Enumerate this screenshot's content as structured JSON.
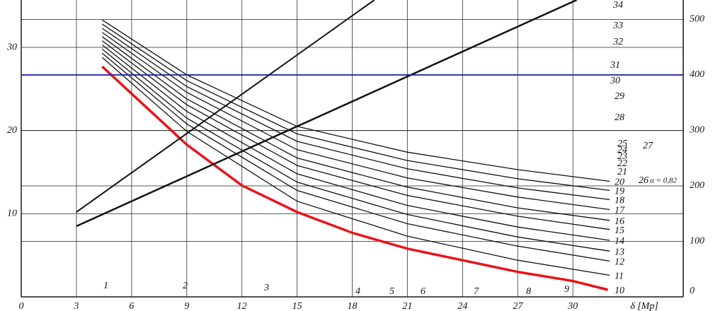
{
  "chart_data": {
    "type": "line",
    "x_label": "δ [Mp]",
    "xlim": [
      0,
      36
    ],
    "xticks": [
      0,
      3,
      6,
      9,
      12,
      15,
      18,
      21,
      24,
      27,
      30
    ],
    "ylim": [
      0,
      35.7
    ],
    "yticks": [
      10,
      20,
      30
    ],
    "y2lim": [
      0,
      535
    ],
    "y2ticks": [
      0,
      100,
      200,
      300,
      400,
      500
    ],
    "grid": true,
    "series": [
      {
        "name": "10",
        "color": "#e8141a",
        "width": 3.5,
        "x": [
          4.4,
          9,
          12,
          15,
          18,
          21,
          24,
          27,
          30,
          31.9
        ],
        "values": [
          27.7,
          18.3,
          13.4,
          10.2,
          7.7,
          5.8,
          4.4,
          3.0,
          1.9,
          0.85
        ]
      },
      {
        "name": "11",
        "color": "#111111",
        "width": 1.3,
        "x": [
          4.4,
          9,
          15,
          21,
          27,
          32
        ],
        "values": [
          28.8,
          19.9,
          11.5,
          7.3,
          4.4,
          2.6
        ]
      },
      {
        "name": "12",
        "color": "#111111",
        "width": 1.3,
        "x": [
          4.4,
          9,
          15,
          21,
          27,
          32
        ],
        "values": [
          29.3,
          20.8,
          12.8,
          8.8,
          6.1,
          4.3
        ]
      },
      {
        "name": "13",
        "color": "#111111",
        "width": 1.3,
        "x": [
          4.4,
          9,
          15,
          21,
          27,
          32
        ],
        "values": [
          29.8,
          21.5,
          13.8,
          9.9,
          7.2,
          5.5
        ]
      },
      {
        "name": "14",
        "color": "#111111",
        "width": 1.3,
        "x": [
          4.4,
          9,
          15,
          21,
          27,
          32
        ],
        "values": [
          30.3,
          22.3,
          14.8,
          11.0,
          8.4,
          6.8
        ]
      },
      {
        "name": "15",
        "color": "#111111",
        "width": 1.3,
        "x": [
          4.4,
          9,
          15,
          21,
          27,
          32
        ],
        "values": [
          30.8,
          23.1,
          15.8,
          12.2,
          9.7,
          8.1
        ]
      },
      {
        "name": "16",
        "color": "#111111",
        "width": 1.3,
        "x": [
          4.4,
          9,
          15,
          21,
          27,
          32
        ],
        "values": [
          31.3,
          23.8,
          16.7,
          13.2,
          10.7,
          9.2
        ]
      },
      {
        "name": "17",
        "color": "#111111",
        "width": 1.3,
        "x": [
          4.4,
          9,
          15,
          21,
          27,
          32
        ],
        "values": [
          31.8,
          24.6,
          17.7,
          14.3,
          12.0,
          10.5
        ]
      },
      {
        "name": "18",
        "color": "#111111",
        "width": 1.3,
        "x": [
          4.4,
          9,
          15,
          21,
          27,
          32
        ],
        "values": [
          32.3,
          25.3,
          18.7,
          15.4,
          13.1,
          11.7
        ]
      },
      {
        "name": "19",
        "color": "#111111",
        "width": 1.3,
        "x": [
          4.4,
          9,
          15,
          21,
          27,
          32
        ],
        "values": [
          32.8,
          26.0,
          19.6,
          16.4,
          14.2,
          12.8
        ]
      },
      {
        "name": "20",
        "color": "#111111",
        "width": 1.3,
        "x": [
          4.4,
          9,
          15,
          21,
          27,
          32
        ],
        "values": [
          33.3,
          26.7,
          20.5,
          17.4,
          15.3,
          13.9
        ]
      },
      {
        "color": "#111111",
        "width": 2.5,
        "x": [
          3,
          30.2
        ],
        "values": [
          8.5,
          35.7
        ]
      },
      {
        "color": "#111111",
        "width": 2,
        "x": [
          3,
          19.2
        ],
        "values": [
          10.2,
          35.7
        ]
      },
      {
        "color": "#1a1aa8",
        "width": 1.8,
        "axis": "y2",
        "x": [
          0,
          36
        ],
        "values": [
          400,
          400
        ]
      }
    ],
    "annotations": [
      "1",
      "2",
      "3",
      "4",
      "5",
      "6",
      "7",
      "8",
      "9",
      "21",
      "22",
      "23",
      "24",
      "25",
      "26",
      "α = 0,82",
      "27",
      "28",
      "29",
      "30",
      "31",
      "32",
      "33",
      "34"
    ]
  }
}
